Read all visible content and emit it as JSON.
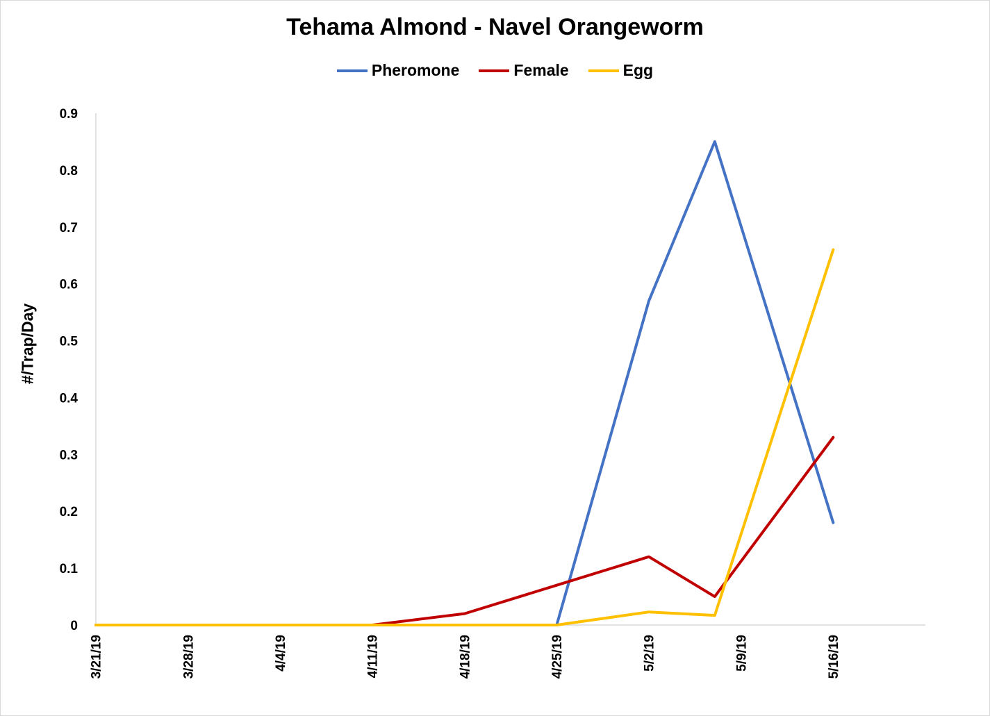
{
  "chart_data": {
    "type": "line",
    "title": "Tehama Almond - Navel Orangeworm",
    "xlabel": "",
    "ylabel": "#/Trap/Day",
    "ylim": [
      0,
      0.9
    ],
    "yticks": [
      "0",
      "0.1",
      "0.2",
      "0.3",
      "0.4",
      "0.5",
      "0.6",
      "0.7",
      "0.8",
      "0.9"
    ],
    "xlim": [
      "2019-03-21",
      "2019-05-23"
    ],
    "xticks": [
      {
        "date": "2019-03-21",
        "label": "3/21/19"
      },
      {
        "date": "2019-03-28",
        "label": "3/28/19"
      },
      {
        "date": "2019-04-04",
        "label": "4/4/19"
      },
      {
        "date": "2019-04-11",
        "label": "4/11/19"
      },
      {
        "date": "2019-04-18",
        "label": "4/18/19"
      },
      {
        "date": "2019-04-25",
        "label": "4/25/19"
      },
      {
        "date": "2019-05-02",
        "label": "5/2/19"
      },
      {
        "date": "2019-05-09",
        "label": "5/9/19"
      },
      {
        "date": "2019-05-16",
        "label": "5/16/19"
      }
    ],
    "grid": false,
    "legend_position": "top",
    "series": [
      {
        "name": "Pheromone",
        "color": "#4472C4",
        "points": [
          {
            "x": "2019-04-25",
            "y": 0
          },
          {
            "x": "2019-05-02",
            "y": 0.57
          },
          {
            "x": "2019-05-07",
            "y": 0.85
          },
          {
            "x": "2019-05-16",
            "y": 0.18
          }
        ]
      },
      {
        "name": "Female",
        "color": "#C00000",
        "points": [
          {
            "x": "2019-03-21",
            "y": 0
          },
          {
            "x": "2019-04-11",
            "y": 0
          },
          {
            "x": "2019-04-18",
            "y": 0.02
          },
          {
            "x": "2019-04-25",
            "y": 0.07
          },
          {
            "x": "2019-05-02",
            "y": 0.12
          },
          {
            "x": "2019-05-07",
            "y": 0.05
          },
          {
            "x": "2019-05-16",
            "y": 0.33
          }
        ]
      },
      {
        "name": "Egg",
        "color": "#FFC000",
        "points": [
          {
            "x": "2019-03-21",
            "y": 0
          },
          {
            "x": "2019-04-25",
            "y": 0
          },
          {
            "x": "2019-05-02",
            "y": 0.023
          },
          {
            "x": "2019-05-07",
            "y": 0.017
          },
          {
            "x": "2019-05-16",
            "y": 0.66
          }
        ]
      }
    ]
  }
}
